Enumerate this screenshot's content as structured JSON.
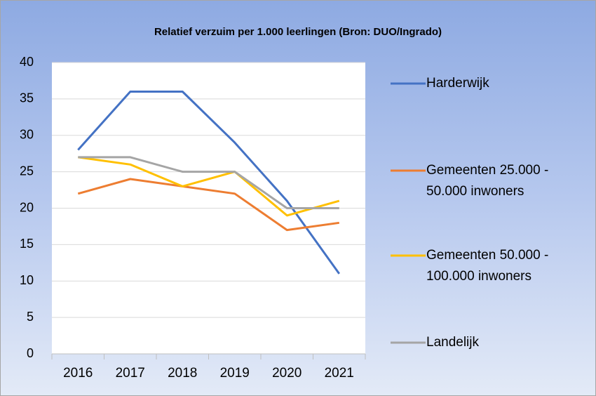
{
  "chart_data": {
    "type": "line",
    "title": "Relatief verzuim per 1.000 leerlingen (Bron: DUO/Ingrado)",
    "categories": [
      "2016",
      "2017",
      "2018",
      "2019",
      "2020",
      "2021"
    ],
    "series": [
      {
        "name": "Harderwijk",
        "color": "#4472c4",
        "values": [
          28,
          36,
          36,
          29,
          21,
          11
        ]
      },
      {
        "name": "Gemeenten 25.000 - 50.000 inwoners",
        "color": "#ed7d31",
        "values": [
          22,
          24,
          23,
          22,
          17,
          18
        ]
      },
      {
        "name": "Gemeenten 50.000 - 100.000 inwoners",
        "color": "#ffc000",
        "values": [
          27,
          26,
          23,
          25,
          19,
          21
        ]
      },
      {
        "name": "Landelijk",
        "color": "#a5a5a5",
        "values": [
          27,
          27,
          25,
          25,
          20,
          20
        ]
      }
    ],
    "ylim": [
      0,
      40
    ],
    "yticks": [
      0,
      5,
      10,
      15,
      20,
      25,
      30,
      35,
      40
    ],
    "grid": true,
    "legend": "right"
  }
}
